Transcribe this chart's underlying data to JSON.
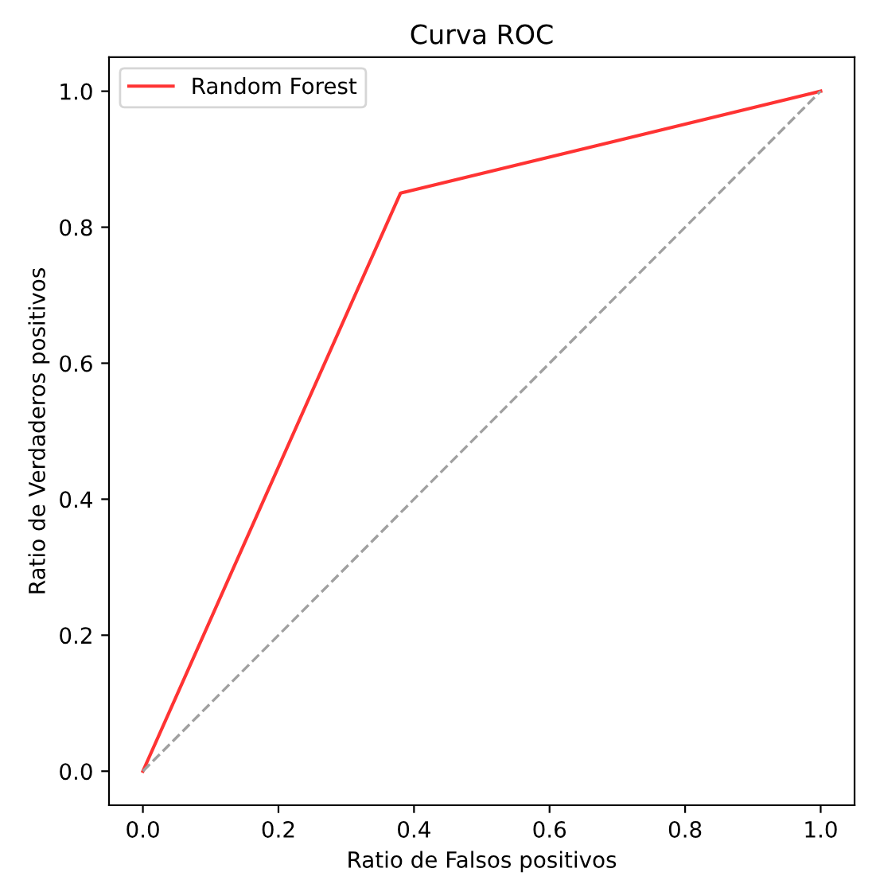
{
  "chart_data": {
    "type": "line",
    "title": "Curva ROC",
    "xlabel": "Ratio de Falsos positivos",
    "ylabel": "Ratio de Verdaderos positivos",
    "series": [
      {
        "name": "Random Forest",
        "color": "#ff0000",
        "x": [
          0,
          0.38,
          1
        ],
        "values": [
          0,
          0.85,
          1
        ],
        "line_style": "solid"
      },
      {
        "color": "#a0a0a0",
        "x": [
          0,
          1
        ],
        "values": [
          0,
          1
        ],
        "line_style": "dashed"
      }
    ],
    "xlim": [
      -0.05,
      1.05
    ],
    "ylim": [
      -0.05,
      1.05
    ],
    "xticks": [
      {
        "value": 0,
        "label": "0.0"
      },
      0.2,
      0.4,
      0.6,
      0.8,
      {
        "value": 1,
        "label": "1.0"
      }
    ],
    "yticks": [
      {
        "value": 0,
        "label": "0.0"
      },
      0.2,
      0.4,
      0.6,
      0.8,
      {
        "value": 1,
        "label": "1.0"
      }
    ],
    "grid": false,
    "legend": "top left",
    "marker": "none"
  }
}
